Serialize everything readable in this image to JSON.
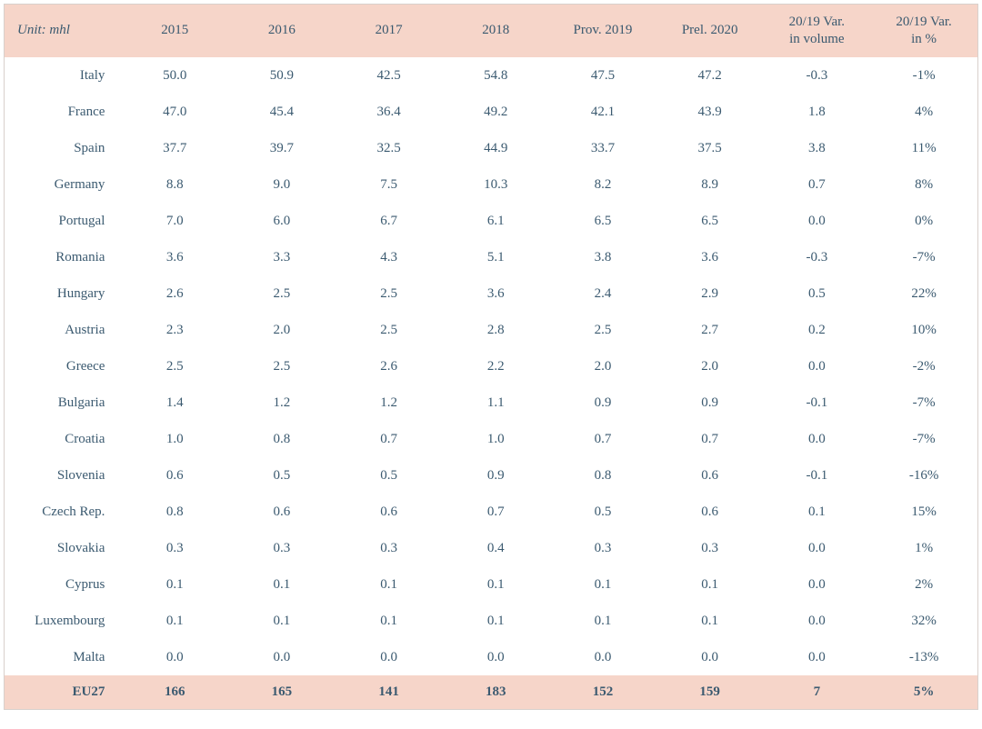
{
  "colors": {
    "header_bg": "#f6d5c9",
    "total_bg": "#f6d5c9",
    "border": "#d8d0cc",
    "text": "#39596f",
    "body_text": "#3b5a70",
    "page_bg": "#ffffff"
  },
  "typography": {
    "header_font": "Georgia, serif",
    "header_fontsize_pt": 11,
    "body_font": "Georgia, serif",
    "body_fontsize_pt": 11,
    "unit_italic": true,
    "total_bold": true
  },
  "table": {
    "unit_label": "Unit: mhl",
    "columns": [
      "2015",
      "2016",
      "2017",
      "2018",
      "Prov. 2019",
      "Prel. 2020",
      "20/19 Var.\nin volume",
      "20/19 Var.\nin %"
    ],
    "rows": [
      {
        "country": "Italy",
        "cells": [
          "50.0",
          "50.9",
          "42.5",
          "54.8",
          "47.5",
          "47.2",
          "-0.3",
          "-1%"
        ]
      },
      {
        "country": "France",
        "cells": [
          "47.0",
          "45.4",
          "36.4",
          "49.2",
          "42.1",
          "43.9",
          "1.8",
          "4%"
        ]
      },
      {
        "country": "Spain",
        "cells": [
          "37.7",
          "39.7",
          "32.5",
          "44.9",
          "33.7",
          "37.5",
          "3.8",
          "11%"
        ]
      },
      {
        "country": "Germany",
        "cells": [
          "8.8",
          "9.0",
          "7.5",
          "10.3",
          "8.2",
          "8.9",
          "0.7",
          "8%"
        ]
      },
      {
        "country": "Portugal",
        "cells": [
          "7.0",
          "6.0",
          "6.7",
          "6.1",
          "6.5",
          "6.5",
          "0.0",
          "0%"
        ]
      },
      {
        "country": "Romania",
        "cells": [
          "3.6",
          "3.3",
          "4.3",
          "5.1",
          "3.8",
          "3.6",
          "-0.3",
          "-7%"
        ]
      },
      {
        "country": "Hungary",
        "cells": [
          "2.6",
          "2.5",
          "2.5",
          "3.6",
          "2.4",
          "2.9",
          "0.5",
          "22%"
        ]
      },
      {
        "country": "Austria",
        "cells": [
          "2.3",
          "2.0",
          "2.5",
          "2.8",
          "2.5",
          "2.7",
          "0.2",
          "10%"
        ]
      },
      {
        "country": "Greece",
        "cells": [
          "2.5",
          "2.5",
          "2.6",
          "2.2",
          "2.0",
          "2.0",
          "0.0",
          "-2%"
        ]
      },
      {
        "country": "Bulgaria",
        "cells": [
          "1.4",
          "1.2",
          "1.2",
          "1.1",
          "0.9",
          "0.9",
          "-0.1",
          "-7%"
        ]
      },
      {
        "country": "Croatia",
        "cells": [
          "1.0",
          "0.8",
          "0.7",
          "1.0",
          "0.7",
          "0.7",
          "0.0",
          "-7%"
        ]
      },
      {
        "country": "Slovenia",
        "cells": [
          "0.6",
          "0.5",
          "0.5",
          "0.9",
          "0.8",
          "0.6",
          "-0.1",
          "-16%"
        ]
      },
      {
        "country": "Czech Rep.",
        "cells": [
          "0.8",
          "0.6",
          "0.6",
          "0.7",
          "0.5",
          "0.6",
          "0.1",
          "15%"
        ]
      },
      {
        "country": "Slovakia",
        "cells": [
          "0.3",
          "0.3",
          "0.3",
          "0.4",
          "0.3",
          "0.3",
          "0.0",
          "1%"
        ]
      },
      {
        "country": "Cyprus",
        "cells": [
          "0.1",
          "0.1",
          "0.1",
          "0.1",
          "0.1",
          "0.1",
          "0.0",
          "2%"
        ]
      },
      {
        "country": "Luxembourg",
        "cells": [
          "0.1",
          "0.1",
          "0.1",
          "0.1",
          "0.1",
          "0.1",
          "0.0",
          "32%"
        ]
      },
      {
        "country": "Malta",
        "cells": [
          "0.0",
          "0.0",
          "0.0",
          "0.0",
          "0.0",
          "0.0",
          "0.0",
          "-13%"
        ]
      }
    ],
    "total": {
      "country": "EU27",
      "cells": [
        "166",
        "165",
        "141",
        "183",
        "152",
        "159",
        "7",
        "5%"
      ]
    }
  }
}
